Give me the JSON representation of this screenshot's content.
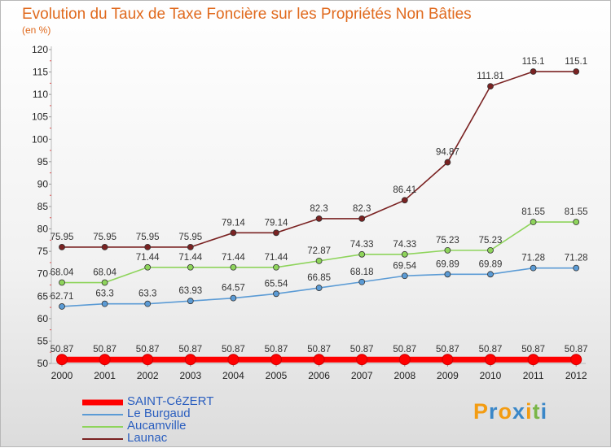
{
  "title": "Evolution du Taux de Taxe Foncière sur les Propriétés Non Bâties",
  "subtitle": "(en %)",
  "logo": {
    "text": "Proxiti",
    "letters": [
      "P",
      "r",
      "o",
      "x",
      "i",
      "t",
      "i"
    ],
    "colors": [
      "#f39c12",
      "#3a87c8",
      "#f39c12",
      "#3a87c8",
      "#f39c12",
      "#7ab648",
      "#3a87c8"
    ]
  },
  "chart_data": {
    "type": "line",
    "title": "Evolution du Taux de Taxe Foncière sur les Propriétés Non Bâties",
    "ylabel": "(en %)",
    "xlabel": "",
    "ylim": [
      50,
      120
    ],
    "yticks": [
      50,
      55,
      60,
      65,
      70,
      75,
      80,
      85,
      90,
      95,
      100,
      105,
      110,
      115,
      120
    ],
    "categories": [
      "2000",
      "2001",
      "2002",
      "2003",
      "2004",
      "2005",
      "2006",
      "2007",
      "2008",
      "2009",
      "2010",
      "2011",
      "2012"
    ],
    "grid": false,
    "legend_position": "bottom-left",
    "series": [
      {
        "name": "SAINT-CéZERT",
        "color": "#ff0000",
        "values": [
          50.87,
          50.87,
          50.87,
          50.87,
          50.87,
          50.87,
          50.87,
          50.87,
          50.87,
          50.87,
          50.87,
          50.87,
          50.87
        ],
        "labels": [
          "50.87",
          "50.87",
          "50.87",
          "50.87",
          "50.87",
          "50.87",
          "50.87",
          "50.87",
          "50.87",
          "50.87",
          "50.87",
          "50.87",
          "50.87"
        ]
      },
      {
        "name": "Le Burgaud",
        "color": "#5b9bd5",
        "values": [
          62.71,
          63.3,
          63.3,
          63.93,
          64.57,
          65.54,
          66.85,
          68.18,
          69.54,
          69.89,
          69.89,
          71.28,
          71.28
        ],
        "labels": [
          "62.71",
          "63.3",
          "63.3",
          "63.93",
          "64.57",
          "65.54",
          "66.85",
          "68.18",
          "69.54",
          "69.89",
          "69.89",
          "71.28",
          "71.28"
        ]
      },
      {
        "name": "Aucamville",
        "color": "#8ed45b",
        "values": [
          68.04,
          68.04,
          71.44,
          71.44,
          71.44,
          71.44,
          72.87,
          74.33,
          74.33,
          75.23,
          75.23,
          81.55,
          81.55
        ],
        "labels": [
          "68.04",
          "68.04",
          "71.44",
          "71.44",
          "71.44",
          "71.44",
          "72.87",
          "74.33",
          "74.33",
          "75.23",
          "75.23",
          "81.55",
          "81.55"
        ]
      },
      {
        "name": "Launac",
        "color": "#7a2222",
        "values": [
          75.95,
          75.95,
          75.95,
          75.95,
          79.14,
          79.14,
          82.3,
          82.3,
          86.41,
          94.87,
          111.81,
          115.1,
          115.1
        ],
        "labels": [
          "75.95",
          "75.95",
          "75.95",
          "75.95",
          "79.14",
          "79.14",
          "82.3",
          "82.3",
          "86.41",
          "94.87",
          "111.81",
          "115.1",
          "115.1"
        ]
      }
    ]
  }
}
